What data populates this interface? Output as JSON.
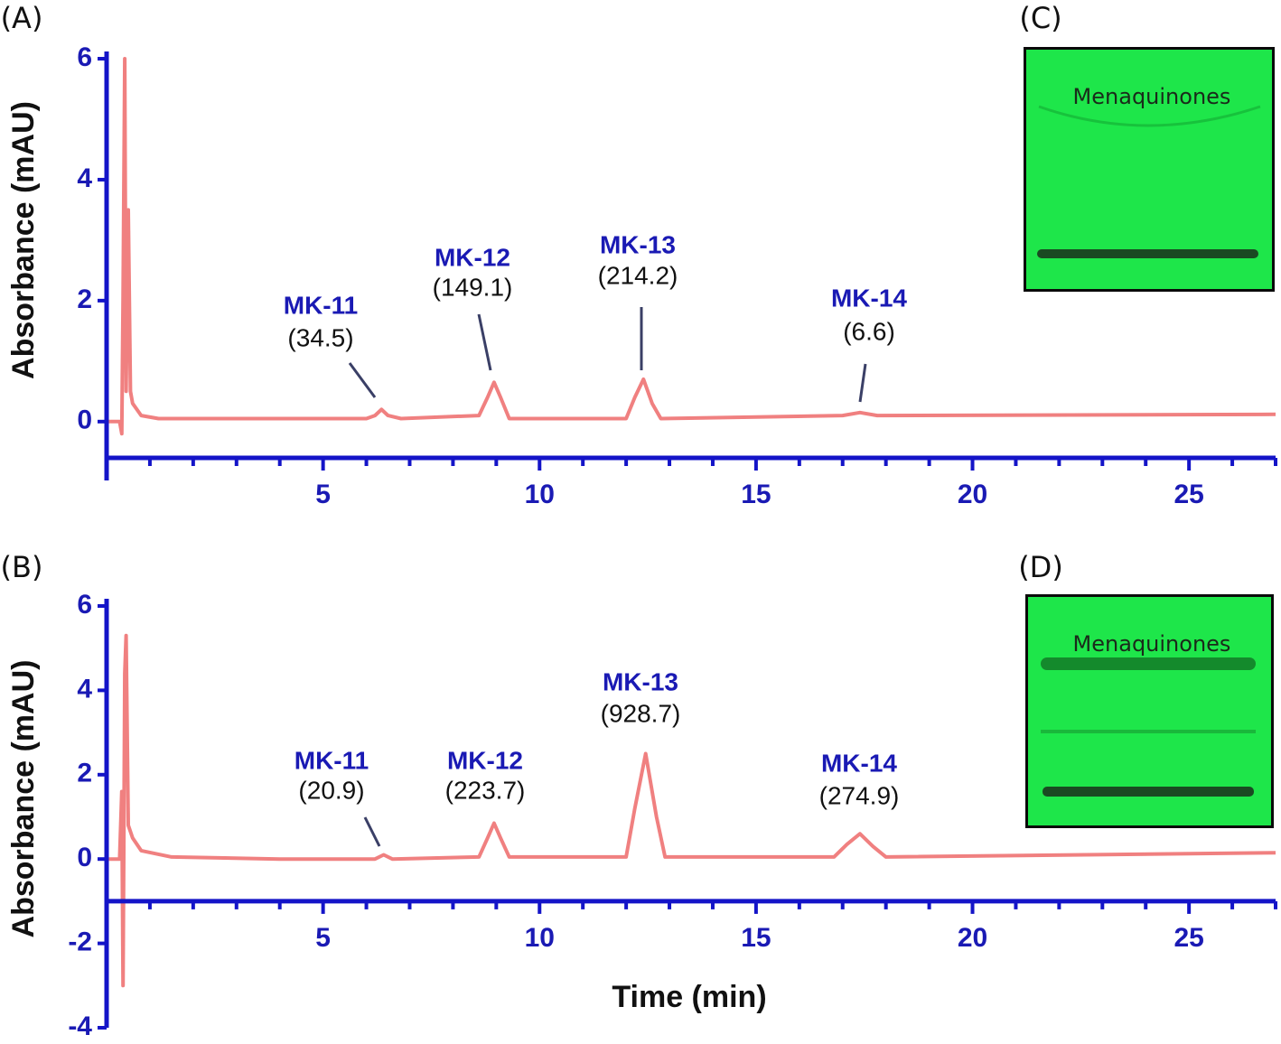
{
  "chart_data": [
    {
      "type": "line",
      "panel_label": "(A)",
      "ylabel": "Absorbance (mAU)",
      "color": "#f08080",
      "x": [
        0,
        0.3,
        0.35,
        0.38,
        0.42,
        0.45,
        0.5,
        0.55,
        0.6,
        0.8,
        1.2,
        2,
        4,
        6,
        6.2,
        6.35,
        6.5,
        6.8,
        8.6,
        8.8,
        8.95,
        9.1,
        9.3,
        12.0,
        12.2,
        12.4,
        12.6,
        12.8,
        17.0,
        17.4,
        17.8,
        27
      ],
      "values": [
        0,
        0,
        -0.2,
        2,
        6,
        0.5,
        3.5,
        0.5,
        0.3,
        0.1,
        0.05,
        0.05,
        0.05,
        0.05,
        0.1,
        0.2,
        0.1,
        0.05,
        0.1,
        0.4,
        0.65,
        0.4,
        0.05,
        0.05,
        0.4,
        0.7,
        0.3,
        0.05,
        0.1,
        0.15,
        0.1,
        0.12
      ],
      "xlim": [
        0,
        27
      ],
      "ylim": [
        -0.6,
        6
      ],
      "x_axis_crossing": -0.6,
      "xticks": [
        5,
        10,
        15,
        20,
        25
      ],
      "xminorticks": [
        1,
        2,
        3,
        4,
        6,
        7,
        8,
        9,
        11,
        12,
        13,
        14,
        16,
        17,
        18,
        19,
        21,
        22,
        23,
        24,
        26,
        27
      ],
      "yticks": [
        0,
        2,
        4,
        6
      ],
      "annotations": [
        {
          "name": "MK-11",
          "value": 34.5,
          "label": "(34.5)"
        },
        {
          "name": "MK-12",
          "value": 149.1,
          "label": "(149.1)"
        },
        {
          "name": "MK-13",
          "value": 214.2,
          "label": "(214.2)"
        },
        {
          "name": "MK-14",
          "value": 6.6,
          "label": "(6.6)"
        }
      ]
    },
    {
      "type": "line",
      "panel_label": "(B)",
      "ylabel": "Absorbance (mAU)",
      "xlabel": "Time (min)",
      "color": "#f08080",
      "x": [
        0,
        0.3,
        0.35,
        0.38,
        0.42,
        0.45,
        0.5,
        0.6,
        0.8,
        1.5,
        4,
        6.2,
        6.4,
        6.6,
        8.6,
        8.8,
        8.95,
        9.1,
        9.3,
        12.0,
        12.2,
        12.45,
        12.7,
        12.9,
        16.8,
        17.1,
        17.4,
        17.7,
        18.0,
        27
      ],
      "values": [
        0,
        0,
        1.6,
        -3,
        4.4,
        5.3,
        0.8,
        0.5,
        0.2,
        0.05,
        0.0,
        0.0,
        0.1,
        0.0,
        0.05,
        0.5,
        0.85,
        0.5,
        0.05,
        0.05,
        1.2,
        2.5,
        1.0,
        0.05,
        0.05,
        0.35,
        0.6,
        0.3,
        0.05,
        0.15
      ],
      "xlim": [
        0,
        27
      ],
      "ylim": [
        -4,
        6
      ],
      "x_axis_crossing": -1,
      "xticks": [
        5,
        10,
        15,
        20,
        25
      ],
      "xminorticks": [
        1,
        2,
        3,
        4,
        6,
        7,
        8,
        9,
        11,
        12,
        13,
        14,
        16,
        17,
        18,
        19,
        21,
        22,
        23,
        24,
        26,
        27
      ],
      "yticks": [
        -4,
        -2,
        0,
        2,
        4,
        6
      ],
      "annotations": [
        {
          "name": "MK-11",
          "value": 20.9,
          "label": "(20.9)"
        },
        {
          "name": "MK-12",
          "value": 223.7,
          "label": "(223.7)"
        },
        {
          "name": "MK-13",
          "value": 928.7,
          "label": "(928.7)"
        },
        {
          "name": "MK-14",
          "value": 274.9,
          "label": "(274.9)"
        }
      ]
    }
  ],
  "images": [
    {
      "label": "(C)",
      "caption": "Menaquinones"
    },
    {
      "label": "(D)",
      "caption": "Menaquinones"
    }
  ]
}
